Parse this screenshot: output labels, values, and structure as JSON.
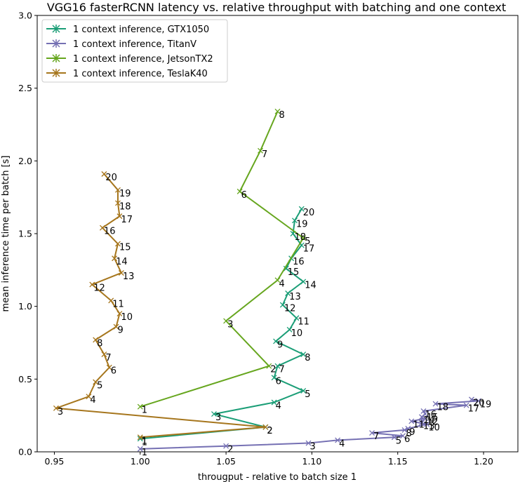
{
  "chart_data": {
    "type": "line",
    "title": "VGG16 fasterRCNN latency vs. relative throughput with batching and one context",
    "xlabel": "througput - relative to batch size 1",
    "ylabel": "mean inference time per batch [s]",
    "xlim": [
      0.94,
      1.22
    ],
    "ylim": [
      0,
      3.0
    ],
    "xticks": [
      0.95,
      1.0,
      1.05,
      1.1,
      1.15,
      1.2
    ],
    "xtick_labels": [
      "0.95",
      "1.00",
      "1.05",
      "1.10",
      "1.15",
      "1.20"
    ],
    "yticks": [
      0.0,
      0.5,
      1.0,
      1.5,
      2.0,
      2.5,
      3.0
    ],
    "ytick_labels": [
      "0.0",
      "0.5",
      "1.0",
      "1.5",
      "2.0",
      "2.5",
      "3.0"
    ],
    "legend_position": "top-left",
    "series": [
      {
        "name": "1 context inference, GTX1050",
        "color": "#1b9e77",
        "labels": [
          "1",
          "2",
          "3",
          "4",
          "5",
          "6",
          "7",
          "8",
          "9",
          "10",
          "11",
          "12",
          "13",
          "14",
          "15",
          "16",
          "17",
          "18",
          "19",
          "20"
        ],
        "x": [
          1.0,
          1.073,
          1.043,
          1.078,
          1.095,
          1.078,
          1.08,
          1.095,
          1.079,
          1.087,
          1.091,
          1.083,
          1.086,
          1.095,
          1.085,
          1.088,
          1.094,
          1.089,
          1.09,
          1.094
        ],
        "y": [
          0.09,
          0.17,
          0.26,
          0.34,
          0.42,
          0.51,
          0.59,
          0.67,
          0.76,
          0.84,
          0.92,
          1.01,
          1.09,
          1.17,
          1.26,
          1.33,
          1.42,
          1.5,
          1.59,
          1.67
        ]
      },
      {
        "name": "1 context inference, TitanV",
        "color": "#7570b3",
        "labels": [
          "1",
          "2",
          "3",
          "4",
          "5",
          "6",
          "7",
          "8",
          "9",
          "10",
          "11",
          "12",
          "13",
          "14",
          "15",
          "16",
          "17",
          "18",
          "19",
          "20"
        ],
        "x": [
          1.0,
          1.05,
          1.098,
          1.115,
          1.148,
          1.153,
          1.135,
          1.154,
          1.156,
          1.167,
          1.158,
          1.166,
          1.164,
          1.164,
          1.166,
          1.165,
          1.19,
          1.172,
          1.197,
          1.193
        ],
        "y": [
          0.02,
          0.04,
          0.06,
          0.08,
          0.1,
          0.11,
          0.13,
          0.15,
          0.16,
          0.19,
          0.21,
          0.23,
          0.2,
          0.24,
          0.26,
          0.28,
          0.32,
          0.33,
          0.35,
          0.36
        ]
      },
      {
        "name": "1 context inference, JetsonTX2",
        "color": "#66a61e",
        "labels": [
          "1",
          "2",
          "3",
          "4",
          "5",
          "6",
          "7",
          "8"
        ],
        "x": [
          1.0,
          1.075,
          1.05,
          1.08,
          1.095,
          1.058,
          1.07,
          1.08
        ],
        "y": [
          0.31,
          0.59,
          0.9,
          1.18,
          1.47,
          1.79,
          2.07,
          2.34
        ]
      },
      {
        "name": "1 context inference, TeslaK40",
        "color": "#a6761d",
        "labels": [
          "1",
          "2",
          "3",
          "4",
          "5",
          "6",
          "7",
          "8",
          "9",
          "10",
          "11",
          "12",
          "13",
          "14",
          "15",
          "16",
          "17",
          "18",
          "19",
          "20"
        ],
        "x": [
          1.0,
          1.073,
          0.951,
          0.97,
          0.974,
          0.982,
          0.979,
          0.974,
          0.986,
          0.988,
          0.983,
          0.972,
          0.989,
          0.985,
          0.987,
          0.978,
          0.988,
          0.987,
          0.987,
          0.979
        ],
        "y": [
          0.1,
          0.17,
          0.3,
          0.38,
          0.48,
          0.58,
          0.67,
          0.77,
          0.86,
          0.95,
          1.04,
          1.15,
          1.23,
          1.33,
          1.43,
          1.54,
          1.62,
          1.71,
          1.8,
          1.91
        ]
      }
    ]
  }
}
